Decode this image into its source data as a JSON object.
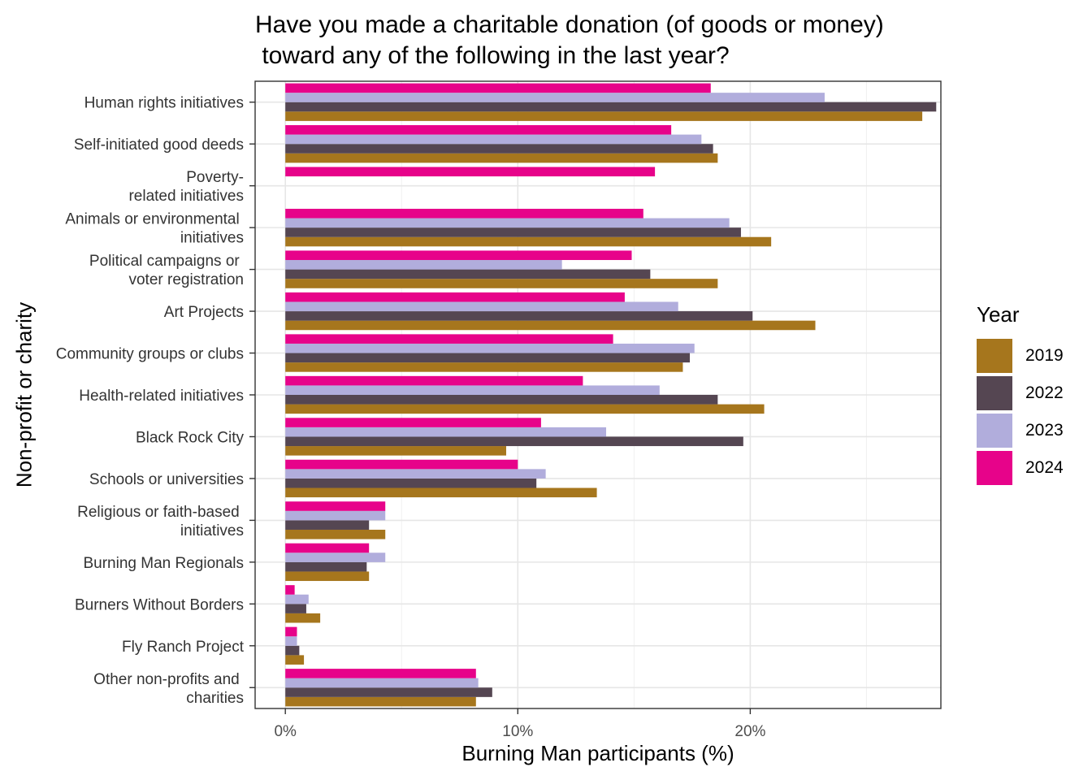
{
  "chart_data": {
    "type": "bar",
    "orientation": "horizontal",
    "title": "Have you made a charitable donation (of goods or money)\n toward any of the following in the last year?",
    "xlabel": "Burning Man participants (%)",
    "ylabel": "Non-profit or charity",
    "xlim": [
      -1.3,
      28.2
    ],
    "x_ticks": [
      0,
      10,
      20
    ],
    "x_tick_labels": [
      "0%",
      "10%",
      "20%"
    ],
    "grid": true,
    "legend_title": "Year",
    "legend_position": "right",
    "categories": [
      "Human rights initiatives",
      "Self-initiated good deeds",
      "Poverty-\nrelated initiatives",
      "Animals or environmental \ninitiatives",
      "Political campaigns or \nvoter registration",
      "Art Projects",
      "Community groups or clubs",
      "Health-related initiatives",
      "Black Rock City",
      "Schools or universities",
      "Religious or faith-based \ninitiatives",
      "Burning Man Regionals",
      "Burners Without Borders",
      "Fly Ranch Project",
      "Other non-profits and \ncharities"
    ],
    "series": [
      {
        "name": "2019",
        "color": "#A6761D",
        "values": [
          27.4,
          18.6,
          null,
          20.9,
          18.6,
          22.8,
          17.1,
          20.6,
          9.5,
          13.4,
          4.3,
          3.6,
          1.5,
          0.8,
          8.2
        ]
      },
      {
        "name": "2022",
        "color": "#554652",
        "values": [
          28.0,
          18.4,
          null,
          19.6,
          15.7,
          20.1,
          17.4,
          18.6,
          19.7,
          10.8,
          3.6,
          3.5,
          0.9,
          0.6,
          8.9
        ]
      },
      {
        "name": "2023",
        "color": "#B1ADDC",
        "values": [
          23.2,
          17.9,
          null,
          19.1,
          11.9,
          16.9,
          17.6,
          16.1,
          13.8,
          11.2,
          4.3,
          4.3,
          1.0,
          0.5,
          8.3
        ]
      },
      {
        "name": "2024",
        "color": "#E7038A",
        "values": [
          18.3,
          16.6,
          15.9,
          15.4,
          14.9,
          14.6,
          14.1,
          12.8,
          11.0,
          10.0,
          4.3,
          3.6,
          0.4,
          0.5,
          8.2
        ]
      }
    ]
  }
}
